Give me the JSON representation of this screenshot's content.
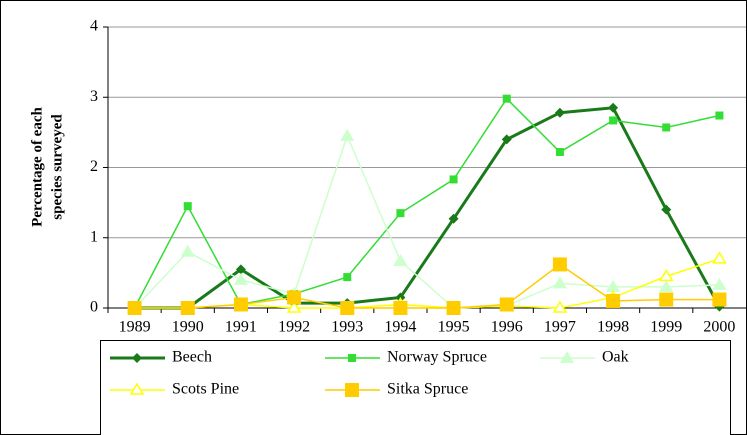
{
  "chart_data": {
    "type": "line",
    "ylabel": [
      "Percentage of each",
      "species surveyed"
    ],
    "categories": [
      "1989",
      "1990",
      "1991",
      "1992",
      "1993",
      "1994",
      "1995",
      "1996",
      "1997",
      "1998",
      "1999",
      "2000"
    ],
    "series": [
      {
        "name": "Beech",
        "color": "#1a7a1a",
        "marker": "diamond",
        "values": [
          0,
          0,
          0.55,
          0.07,
          0.07,
          0.15,
          1.27,
          2.4,
          2.78,
          2.85,
          1.4,
          0.02
        ]
      },
      {
        "name": "Norway Spruce",
        "color": "#33dd33",
        "marker": "square",
        "values": [
          0,
          1.45,
          0.05,
          0.2,
          0.44,
          1.35,
          1.83,
          2.98,
          2.22,
          2.67,
          2.57,
          2.74
        ]
      },
      {
        "name": "Oak",
        "color": "#ccffcc",
        "marker": "triangle",
        "values": [
          0,
          0.8,
          0.4,
          0.2,
          2.45,
          0.67,
          0,
          0.03,
          0.35,
          0.3,
          0.3,
          0.33
        ]
      },
      {
        "name": "Scots Pine",
        "color": "#ffff00",
        "marker": "open-triangle",
        "values": [
          0,
          0,
          0.05,
          0,
          0,
          0.05,
          0,
          0.03,
          0,
          0.15,
          0.45,
          0.7
        ]
      },
      {
        "name": "Sitka Spruce",
        "color": "#ffcc00",
        "marker": "big-square",
        "values": [
          0,
          0,
          0.05,
          0.15,
          0,
          0,
          0,
          0.05,
          0.62,
          0.1,
          0.12,
          0.12
        ]
      }
    ],
    "ylim": [
      0,
      4
    ],
    "yticks": [
      0,
      1,
      2,
      3,
      4
    ],
    "grid": true
  }
}
